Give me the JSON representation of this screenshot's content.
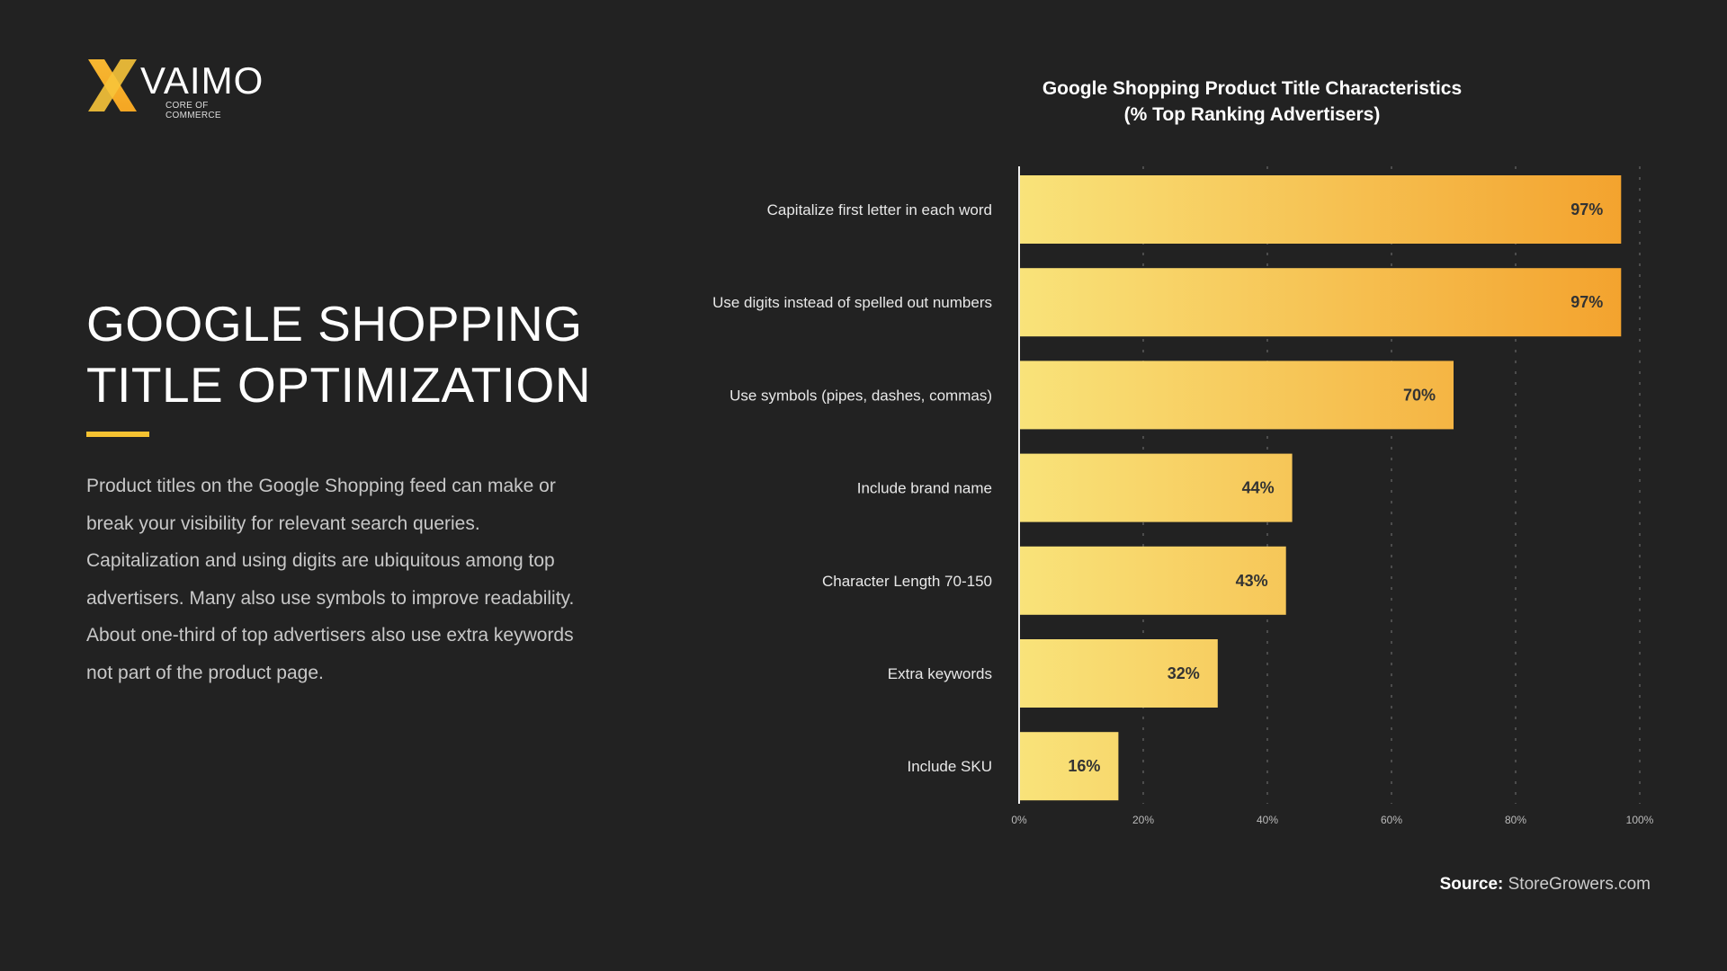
{
  "logo": {
    "name": "VAIMO",
    "tagline": "CORE OF COMMERCE"
  },
  "heading": {
    "line1": "GOOGLE SHOPPING",
    "line2": "TITLE OPTIMIZATION"
  },
  "description": "Product titles on the Google Shopping feed can make or break your visibility for relevant search queries. Capitalization and using digits are ubiquitous among top advertisers. Many also use symbols to improve readability. About one-third of top advertisers also use extra keywords not part of the product page.",
  "source": {
    "label": "Source:",
    "value": "StoreGrowers.com"
  },
  "colors": {
    "background": "#222222",
    "bar_start": "#f9e37a",
    "bar_end": "#f3a12c",
    "accent": "#f5c231"
  },
  "chart_data": {
    "type": "bar",
    "orientation": "horizontal",
    "title": "Google Shopping Product Title Characteristics",
    "subtitle": "(% Top Ranking Advertisers)",
    "categories": [
      "Capitalize first letter in each word",
      "Use digits instead of spelled out numbers",
      "Use symbols (pipes, dashes, commas)",
      "Include brand name",
      "Character Length 70-150",
      "Extra keywords",
      "Include SKU"
    ],
    "values": [
      97,
      97,
      70,
      44,
      43,
      32,
      16
    ],
    "data_labels": [
      "97%",
      "97%",
      "70%",
      "44%",
      "43%",
      "32%",
      "16%"
    ],
    "xlim": [
      0,
      100
    ],
    "xticks": [
      "0%",
      "20%",
      "40%",
      "60%",
      "80%",
      "100%"
    ],
    "grid": "vertical dashed"
  }
}
